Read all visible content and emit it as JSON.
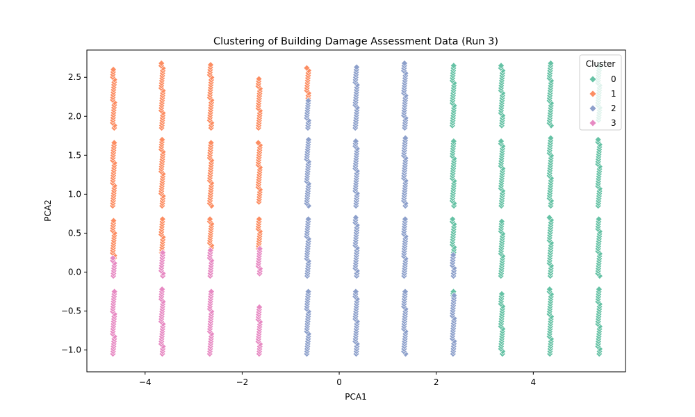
{
  "chart_data": {
    "type": "scatter",
    "title": "Clustering of Building Damage Assessment Data (Run 3)",
    "xlabel": "PCA1",
    "ylabel": "PCA2",
    "xlim": [
      -5.2,
      5.9
    ],
    "ylim": [
      -1.28,
      2.85
    ],
    "xticks": [
      -4,
      -2,
      0,
      2,
      4
    ],
    "yticks": [
      -1.0,
      -0.5,
      0.0,
      0.5,
      1.0,
      1.5,
      2.0,
      2.5
    ],
    "xtick_labels": [
      "−4",
      "−2",
      "0",
      "2",
      "4"
    ],
    "ytick_labels": [
      "−1.0",
      "−0.5",
      "0.0",
      "0.5",
      "1.0",
      "1.5",
      "2.0",
      "2.5"
    ],
    "marker": "diamond",
    "grid": false,
    "legend": {
      "title": "Cluster",
      "placement": "top-right"
    },
    "series": [
      {
        "name": "0",
        "color": "#66c2a5",
        "strips": [
          {
            "x": 2.35,
            "y": [
              1.88,
              2.65
            ]
          },
          {
            "x": 3.35,
            "y": [
              1.88,
              2.65
            ]
          },
          {
            "x": 4.35,
            "y": [
              1.88,
              2.68
            ]
          },
          {
            "x": 5.35,
            "y": [
              1.95,
              2.65
            ]
          },
          {
            "x": 2.35,
            "y": [
              0.85,
              1.68
            ]
          },
          {
            "x": 3.35,
            "y": [
              0.85,
              1.68
            ]
          },
          {
            "x": 4.35,
            "y": [
              0.85,
              1.72
            ]
          },
          {
            "x": 5.35,
            "y": [
              0.85,
              1.7
            ]
          },
          {
            "x": 2.35,
            "y": [
              0.22,
              0.68
            ]
          },
          {
            "x": 3.35,
            "y": [
              -0.05,
              0.65
            ]
          },
          {
            "x": 4.35,
            "y": [
              -0.05,
              0.7
            ]
          },
          {
            "x": 5.35,
            "y": [
              -0.05,
              0.68
            ]
          },
          {
            "x": 2.35,
            "y": [
              -0.3,
              -0.25
            ]
          },
          {
            "x": 3.35,
            "y": [
              -1.05,
              -0.28
            ]
          },
          {
            "x": 4.35,
            "y": [
              -1.05,
              -0.22
            ]
          },
          {
            "x": 5.35,
            "y": [
              -1.05,
              -0.22
            ]
          }
        ]
      },
      {
        "name": "1",
        "color": "#fc8d62",
        "strips": [
          {
            "x": -4.65,
            "y": [
              1.85,
              2.6
            ]
          },
          {
            "x": -3.65,
            "y": [
              1.85,
              2.68
            ]
          },
          {
            "x": -2.65,
            "y": [
              1.85,
              2.66
            ]
          },
          {
            "x": -1.65,
            "y": [
              1.85,
              2.48
            ]
          },
          {
            "x": -0.65,
            "y": [
              2.2,
              2.62
            ]
          },
          {
            "x": -4.65,
            "y": [
              0.85,
              1.66
            ]
          },
          {
            "x": -3.65,
            "y": [
              0.85,
              1.7
            ]
          },
          {
            "x": -2.65,
            "y": [
              0.85,
              1.66
            ]
          },
          {
            "x": -1.65,
            "y": [
              0.9,
              1.66
            ]
          },
          {
            "x": -4.65,
            "y": [
              0.18,
              0.66
            ]
          },
          {
            "x": -3.65,
            "y": [
              0.25,
              0.68
            ]
          },
          {
            "x": -2.65,
            "y": [
              0.28,
              0.68
            ]
          },
          {
            "x": -1.65,
            "y": [
              0.3,
              0.68
            ]
          }
        ]
      },
      {
        "name": "2",
        "color": "#8da0cb",
        "strips": [
          {
            "x": -0.65,
            "y": [
              1.85,
              2.2
            ]
          },
          {
            "x": 0.35,
            "y": [
              1.85,
              2.63
            ]
          },
          {
            "x": 1.35,
            "y": [
              1.85,
              2.68
            ]
          },
          {
            "x": -0.65,
            "y": [
              0.85,
              1.7
            ]
          },
          {
            "x": 0.35,
            "y": [
              0.85,
              1.68
            ]
          },
          {
            "x": 1.35,
            "y": [
              0.85,
              1.72
            ]
          },
          {
            "x": -0.65,
            "y": [
              -0.05,
              0.68
            ]
          },
          {
            "x": 0.35,
            "y": [
              -0.05,
              0.7
            ]
          },
          {
            "x": 1.35,
            "y": [
              -0.05,
              0.68
            ]
          },
          {
            "x": 2.35,
            "y": [
              -0.05,
              0.22
            ]
          },
          {
            "x": -0.65,
            "y": [
              -1.05,
              -0.25
            ]
          },
          {
            "x": 0.35,
            "y": [
              -1.05,
              -0.25
            ]
          },
          {
            "x": 1.35,
            "y": [
              -1.05,
              -0.25
            ]
          },
          {
            "x": 2.35,
            "y": [
              -1.05,
              -0.3
            ]
          }
        ]
      },
      {
        "name": "3",
        "color": "#e78ac3",
        "strips": [
          {
            "x": -4.65,
            "y": [
              -0.05,
              0.18
            ]
          },
          {
            "x": -3.65,
            "y": [
              -0.05,
              0.25
            ]
          },
          {
            "x": -2.65,
            "y": [
              -0.05,
              0.28
            ]
          },
          {
            "x": -1.65,
            "y": [
              -0.02,
              0.3
            ]
          },
          {
            "x": -4.65,
            "y": [
              -1.05,
              -0.25
            ]
          },
          {
            "x": -3.65,
            "y": [
              -1.05,
              -0.22
            ]
          },
          {
            "x": -2.65,
            "y": [
              -1.05,
              -0.25
            ]
          },
          {
            "x": -1.65,
            "y": [
              -1.05,
              -0.45
            ]
          }
        ]
      }
    ]
  }
}
